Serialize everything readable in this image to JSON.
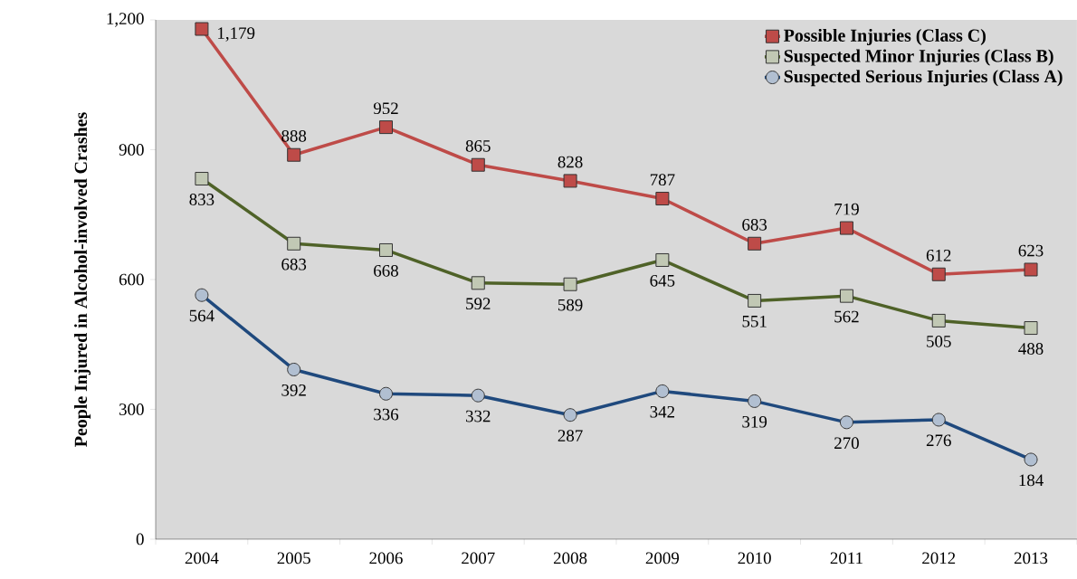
{
  "chart_data": {
    "type": "line",
    "categories": [
      "2004",
      "2005",
      "2006",
      "2007",
      "2008",
      "2009",
      "2010",
      "2011",
      "2012",
      "2013"
    ],
    "ylabel": "People Injured in Alcohol-involved Crashes",
    "ylim": [
      0,
      1200
    ],
    "yticks": [
      0,
      300,
      600,
      900,
      {
        "value": 1200,
        "label": "1,200"
      }
    ],
    "series": [
      {
        "name": "Possible Injuries (Class C)",
        "color": "#be4b48",
        "marker": "square",
        "values": [
          1179,
          888,
          952,
          865,
          828,
          787,
          683,
          719,
          612,
          623
        ],
        "value_labels": [
          "1,179",
          "888",
          "952",
          "865",
          "828",
          "787",
          "683",
          "719",
          "612",
          "623"
        ]
      },
      {
        "name": "Suspected Minor Injuries (Class B)",
        "color": "#4f6228",
        "marker": "square",
        "values": [
          833,
          683,
          668,
          592,
          589,
          645,
          551,
          562,
          505,
          488
        ],
        "value_labels": [
          "833",
          "683",
          "668",
          "592",
          "589",
          "645",
          "551",
          "562",
          "505",
          "488"
        ]
      },
      {
        "name": "Suspected Serious Injuries (Class A)",
        "color": "#1f497d",
        "marker": "circle",
        "values": [
          564,
          392,
          336,
          332,
          287,
          342,
          319,
          270,
          276,
          184
        ],
        "value_labels": [
          "564",
          "392",
          "336",
          "332",
          "287",
          "342",
          "319",
          "270",
          "276",
          "184"
        ]
      }
    ],
    "legend": "top right",
    "grid": false
  }
}
